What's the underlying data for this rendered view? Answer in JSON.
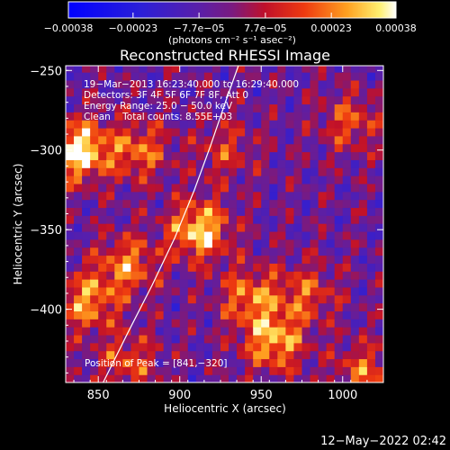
{
  "chart_data": {
    "type": "heatmap",
    "title": "Reconstructed RHESSI Image",
    "xlabel": "Heliocentric X (arcsec)",
    "ylabel": "Heliocentric Y (arcsec)",
    "xlim": [
      830,
      1025
    ],
    "ylim": [
      -446,
      -247
    ],
    "x_ticks": [
      850,
      900,
      950,
      1000
    ],
    "y_ticks": [
      -250,
      -300,
      -350,
      -400
    ],
    "x_tick_labels": [
      "850",
      "900",
      "950",
      "1000"
    ],
    "y_tick_labels": [
      "−250",
      "−300",
      "−350",
      "−400"
    ],
    "colorbar": {
      "range": [
        -0.00038,
        0.00038
      ],
      "tick_values": [
        -0.00038,
        -0.00023,
        -7.7e-05,
        7.7e-05,
        0.00023,
        0.00038
      ],
      "tick_labels": [
        "−0.00038",
        "−0.00023",
        "−7.7e−05",
        "7.7e−05",
        "0.00023",
        "0.00038"
      ],
      "unit_label": "(photons cm⁻² s⁻¹ asec⁻²)"
    },
    "info_lines": [
      "19−Mar−2013 16:23:40.000 to 16:29:40.000",
      "Detectors: 3F 4F 5F 6F 7F 8F, Att 0",
      "Energy Range: 25.0 − 50.0 keV",
      "Clean    Total counts: 8.55E+03"
    ],
    "peak_label": "Position of Peak = [841,−320]",
    "peak_position": [
      841,
      -320
    ],
    "limb_curve": [
      [
        853,
        -446
      ],
      [
        868,
        -415
      ],
      [
        883,
        -385
      ],
      [
        897,
        -355
      ],
      [
        909,
        -325
      ],
      [
        919,
        -297
      ],
      [
        928,
        -270
      ],
      [
        936,
        -247
      ]
    ],
    "hotspots": [
      {
        "x": 838,
        "y": -300,
        "value": 0.00038
      },
      {
        "x": 912,
        "y": -350,
        "value": 0.00033
      },
      {
        "x": 875,
        "y": -300,
        "value": 0.0002
      },
      {
        "x": 843,
        "y": -395,
        "value": 0.00024
      },
      {
        "x": 868,
        "y": -372,
        "value": 0.00022
      },
      {
        "x": 958,
        "y": -420,
        "value": 0.00028
      },
      {
        "x": 943,
        "y": -392,
        "value": 0.00022
      },
      {
        "x": 1005,
        "y": -282,
        "value": 0.00016
      },
      {
        "x": 978,
        "y": -390,
        "value": 0.00016
      },
      {
        "x": 1013,
        "y": -440,
        "value": 0.00018
      },
      {
        "x": 868,
        "y": -433,
        "value": 0.00016
      },
      {
        "x": 928,
        "y": -300,
        "value": 0.00012
      }
    ]
  },
  "footer": {
    "timestamp": "12−May−2022 02:42"
  }
}
